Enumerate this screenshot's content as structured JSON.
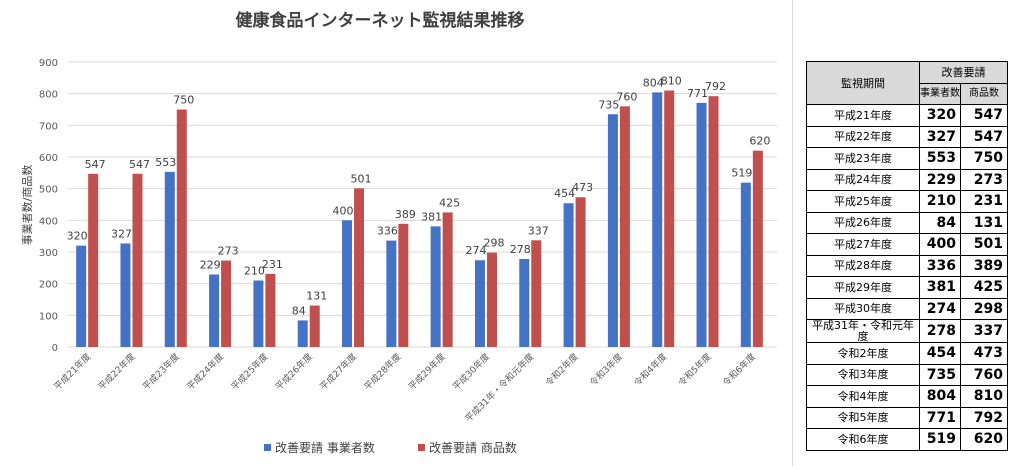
{
  "chart_data": {
    "type": "bar",
    "title": "健康食品インターネット監視結果推移",
    "ylabel": "事業者数/商品数",
    "xlabel": "",
    "ylim": [
      0,
      900
    ],
    "yticks": [
      "0",
      "100",
      "200",
      "300",
      "400",
      "500",
      "600",
      "700",
      "800",
      "900"
    ],
    "grid": true,
    "legend_position": "bottom",
    "categories": [
      "平成21年度",
      "平成22年度",
      "平成23年度",
      "平成24年度",
      "平成25年度",
      "平成26年度",
      "平成27年度",
      "平成28年度",
      "平成29年度",
      "平成30年度",
      "平成31年・令和元年度",
      "令和2年度",
      "令和3年度",
      "令和4年度",
      "令和5年度",
      "令和6年度"
    ],
    "series": [
      {
        "name": "改善要請 事業者数",
        "color": "#4472c4",
        "values": [
          320,
          327,
          553,
          229,
          210,
          84,
          400,
          336,
          381,
          274,
          278,
          454,
          735,
          804,
          771,
          519
        ]
      },
      {
        "name": "改善要請 商品数",
        "color": "#c0504d",
        "values": [
          547,
          547,
          750,
          273,
          231,
          131,
          501,
          389,
          425,
          298,
          337,
          473,
          760,
          810,
          792,
          620
        ]
      }
    ]
  },
  "table": {
    "col_period": "監視期間",
    "col_group": "改善要請",
    "col_sub1": "事業者数",
    "col_sub2": "商品数",
    "rows": [
      {
        "period": "平成21年度",
        "a": "320",
        "b": "547"
      },
      {
        "period": "平成22年度",
        "a": "327",
        "b": "547"
      },
      {
        "period": "平成23年度",
        "a": "553",
        "b": "750"
      },
      {
        "period": "平成24年度",
        "a": "229",
        "b": "273"
      },
      {
        "period": "平成25年度",
        "a": "210",
        "b": "231"
      },
      {
        "period": "平成26年度",
        "a": "84",
        "b": "131"
      },
      {
        "period": "平成27年度",
        "a": "400",
        "b": "501"
      },
      {
        "period": "平成28年度",
        "a": "336",
        "b": "389"
      },
      {
        "period": "平成29年度",
        "a": "381",
        "b": "425"
      },
      {
        "period": "平成30年度",
        "a": "274",
        "b": "298"
      },
      {
        "period": "平成31年・令和元年度",
        "a": "278",
        "b": "337"
      },
      {
        "period": "令和2年度",
        "a": "454",
        "b": "473"
      },
      {
        "period": "令和3年度",
        "a": "735",
        "b": "760"
      },
      {
        "period": "令和4年度",
        "a": "804",
        "b": "810"
      },
      {
        "period": "令和5年度",
        "a": "771",
        "b": "792"
      },
      {
        "period": "令和6年度",
        "a": "519",
        "b": "620"
      }
    ]
  }
}
